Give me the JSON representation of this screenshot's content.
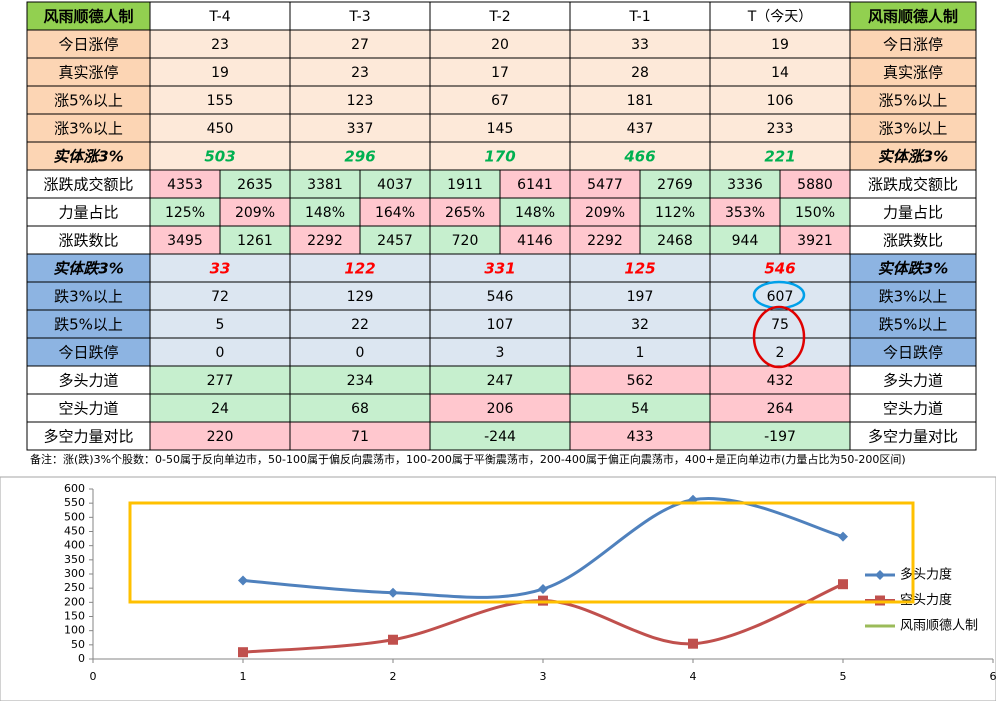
{
  "table": {
    "corner": "风雨顺德人制",
    "header_fill": "#92d050",
    "columns": [
      "T-4",
      "T-3",
      "T-2",
      "T-1",
      "T（今天）"
    ],
    "rows": [
      {
        "label": "今日涨停",
        "label_fill": "#fcd5b4",
        "fill": "#fde9d9",
        "cells": [
          23,
          27,
          20,
          33,
          19
        ]
      },
      {
        "label": "真实涨停",
        "label_fill": "#fcd5b4",
        "fill": "#fde9d9",
        "cells": [
          19,
          23,
          17,
          28,
          14
        ]
      },
      {
        "label": "涨5%以上",
        "label_fill": "#fcd5b4",
        "fill": "#fde9d9",
        "cells": [
          155,
          123,
          67,
          181,
          106
        ]
      },
      {
        "label": "涨3%以上",
        "label_fill": "#fcd5b4",
        "fill": "#fde9d9",
        "cells": [
          450,
          337,
          145,
          437,
          233
        ]
      },
      {
        "label": "实体涨3%",
        "label_fill": "#fcd5b4",
        "fill": "#fde9d9",
        "emphasis": true,
        "text_color": "#00b050",
        "cells": [
          503,
          296,
          170,
          466,
          221
        ]
      },
      {
        "label": "涨跌成交额比",
        "label_fill": "#ffffff",
        "cells": [
          [
            4353,
            2635
          ],
          [
            3381,
            4037
          ],
          [
            1911,
            6141
          ],
          [
            5477,
            2769
          ],
          [
            3336,
            5880
          ]
        ],
        "fills": [
          [
            "#ffc7ce",
            "#c6efce"
          ],
          [
            "#c6efce",
            "#c6efce"
          ],
          [
            "#c6efce",
            "#ffc7ce"
          ],
          [
            "#ffc7ce",
            "#c6efce"
          ],
          [
            "#c6efce",
            "#ffc7ce"
          ]
        ]
      },
      {
        "label": "力量占比",
        "label_fill": "#ffffff",
        "cells": [
          [
            "125%",
            "209%"
          ],
          [
            "148%",
            "164%"
          ],
          [
            "265%",
            "148%"
          ],
          [
            "209%",
            "112%"
          ],
          [
            "353%",
            "150%"
          ]
        ],
        "fills": [
          [
            "#c6efce",
            "#ffc7ce"
          ],
          [
            "#c6efce",
            "#ffc7ce"
          ],
          [
            "#ffc7ce",
            "#c6efce"
          ],
          [
            "#ffc7ce",
            "#c6efce"
          ],
          [
            "#ffc7ce",
            "#c6efce"
          ]
        ]
      },
      {
        "label": "涨跌数比",
        "label_fill": "#ffffff",
        "cells": [
          [
            3495,
            1261
          ],
          [
            2292,
            2457
          ],
          [
            720,
            4146
          ],
          [
            2292,
            2468
          ],
          [
            944,
            3921
          ]
        ],
        "fills": [
          [
            "#ffc7ce",
            "#c6efce"
          ],
          [
            "#ffc7ce",
            "#c6efce"
          ],
          [
            "#c6efce",
            "#ffc7ce"
          ],
          [
            "#ffc7ce",
            "#c6efce"
          ],
          [
            "#c6efce",
            "#ffc7ce"
          ]
        ]
      },
      {
        "label": "实体跌3%",
        "label_fill": "#8db4e2",
        "fill": "#dce6f1",
        "emphasis": true,
        "text_color": "#ff0000",
        "cells": [
          33,
          122,
          331,
          125,
          546
        ]
      },
      {
        "label": "跌3%以上",
        "label_fill": "#8db4e2",
        "fill": "#dce6f1",
        "cells": [
          72,
          129,
          546,
          197,
          607
        ]
      },
      {
        "label": "跌5%以上",
        "label_fill": "#8db4e2",
        "fill": "#dce6f1",
        "cells": [
          5,
          22,
          107,
          32,
          75
        ]
      },
      {
        "label": "今日跌停",
        "label_fill": "#8db4e2",
        "fill": "#dce6f1",
        "cells": [
          0,
          0,
          3,
          1,
          2
        ]
      },
      {
        "label": "多头力道",
        "label_fill": "#ffffff",
        "cells": [
          277,
          234,
          247,
          562,
          432
        ],
        "fills": [
          "#c6efce",
          "#c6efce",
          "#c6efce",
          "#ffc7ce",
          "#ffc7ce"
        ]
      },
      {
        "label": "空头力道",
        "label_fill": "#ffffff",
        "cells": [
          24,
          68,
          206,
          54,
          264
        ],
        "fills": [
          "#c6efce",
          "#c6efce",
          "#ffc7ce",
          "#c6efce",
          "#ffc7ce"
        ]
      },
      {
        "label": "多空力量对比",
        "label_fill": "#ffffff",
        "cells": [
          220,
          71,
          -244,
          433,
          -197
        ],
        "fills": [
          "#ffc7ce",
          "#ffc7ce",
          "#c6efce",
          "#ffc7ce",
          "#c6efce"
        ]
      }
    ],
    "note": "备注：涨(跌)3%个股数：0-50属于反向单边市，50-100属于偏反向震荡市，100-200属于平衡震荡市，200-400属于偏正向震荡市，400+是正向单边市(力量占比为50-200区间)"
  },
  "chart_data": {
    "type": "line",
    "x": [
      1,
      2,
      3,
      4,
      5
    ],
    "xlim": [
      0,
      6
    ],
    "xticks": [
      0,
      1,
      2,
      3,
      4,
      5,
      6
    ],
    "ylim": [
      0,
      600
    ],
    "yticks": [
      0,
      50,
      100,
      150,
      200,
      250,
      300,
      350,
      400,
      450,
      500,
      550,
      600
    ],
    "smooth": true,
    "series": [
      {
        "name": "多头力度",
        "color": "#4f81bd",
        "marker": "diamond",
        "values": [
          277,
          234,
          247,
          562,
          432
        ]
      },
      {
        "name": "空头力度",
        "color": "#c0504d",
        "marker": "square",
        "values": [
          24,
          68,
          206,
          54,
          264
        ]
      },
      {
        "name": "风雨顺德人制",
        "color": "#9bbb59"
      }
    ]
  }
}
